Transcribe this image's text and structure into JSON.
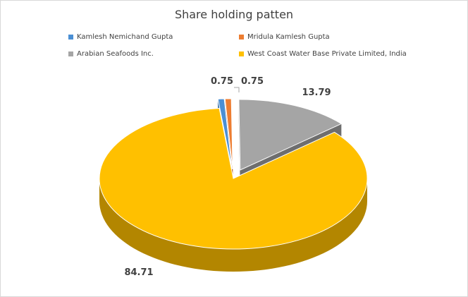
{
  "chart_data": {
    "type": "pie",
    "title": "Share holding patten",
    "legend_position": "top",
    "series": [
      {
        "name": "Kamlesh Nemichand Gupta",
        "value": 0.75,
        "label": "0.75",
        "color": "#4a8fd4",
        "dark": "#2e6aa8"
      },
      {
        "name": "Mridula Kamlesh Gupta",
        "value": 0.75,
        "label": "0.75",
        "color": "#ed7d31",
        "dark": "#b35a1c"
      },
      {
        "name": "Arabian Seafoods Inc.",
        "value": 13.79,
        "label": "13.79",
        "color": "#a5a5a5",
        "dark": "#6e6e6e"
      },
      {
        "name": "West Coast Water Base Private Limited, India",
        "value": 84.71,
        "label": "84.71",
        "color": "#ffc000",
        "dark": "#b38600"
      }
    ]
  }
}
